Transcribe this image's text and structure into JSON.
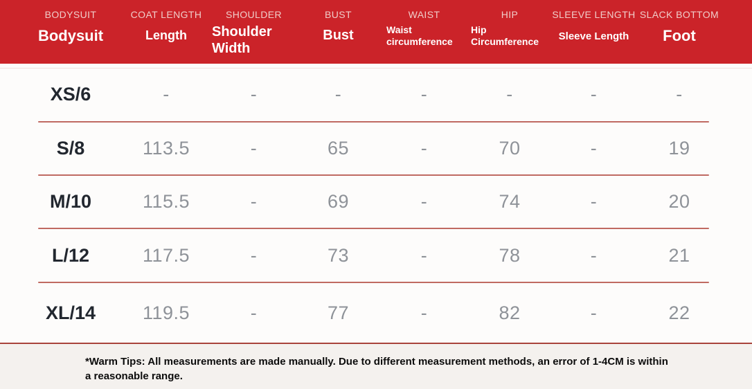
{
  "header": {
    "columns": [
      {
        "cap": "BODYSUIT",
        "label": "Bodysuit"
      },
      {
        "cap": "COAT LENGTH",
        "label": "Length"
      },
      {
        "cap": "SHOULDER",
        "label": "Shoulder Width"
      },
      {
        "cap": "BUST",
        "label": "Bust"
      },
      {
        "cap": "WAIST",
        "label": "Waist circumference"
      },
      {
        "cap": "HIP",
        "label": "Hip Circumference"
      },
      {
        "cap": "SLEEVE LENGTH",
        "label": "Sleeve Length"
      },
      {
        "cap": "SLACK BOTTOM",
        "label": "Foot"
      }
    ]
  },
  "table": {
    "rows": [
      {
        "size": "XS/6",
        "values": [
          "-",
          "-",
          "-",
          "-",
          "-",
          "-",
          "-"
        ]
      },
      {
        "size": "S/8",
        "values": [
          "113.5",
          "-",
          "65",
          "-",
          "70",
          "-",
          "19"
        ]
      },
      {
        "size": "M/10",
        "values": [
          "115.5",
          "-",
          "69",
          "-",
          "74",
          "-",
          "20"
        ]
      },
      {
        "size": "L/12",
        "values": [
          "117.5",
          "-",
          "73",
          "-",
          "78",
          "-",
          "21"
        ]
      },
      {
        "size": "XL/14",
        "values": [
          "119.5",
          "-",
          "77",
          "-",
          "82",
          "-",
          "22"
        ]
      }
    ]
  },
  "footer": {
    "note": "*Warm Tips: All measurements are made manually. Due to different measurement methods, an error of 1-4CM is within a reasonable range."
  },
  "colors": {
    "header_background": "#cb2329",
    "header_caps_text": "#f0cdc9",
    "header_label_text": "#ffffff",
    "row_separator": "#c06a62",
    "heavy_divider": "#a8433b",
    "size_text": "#22272f",
    "value_text": "#8e9298",
    "footer_background": "#f4f1ee"
  }
}
